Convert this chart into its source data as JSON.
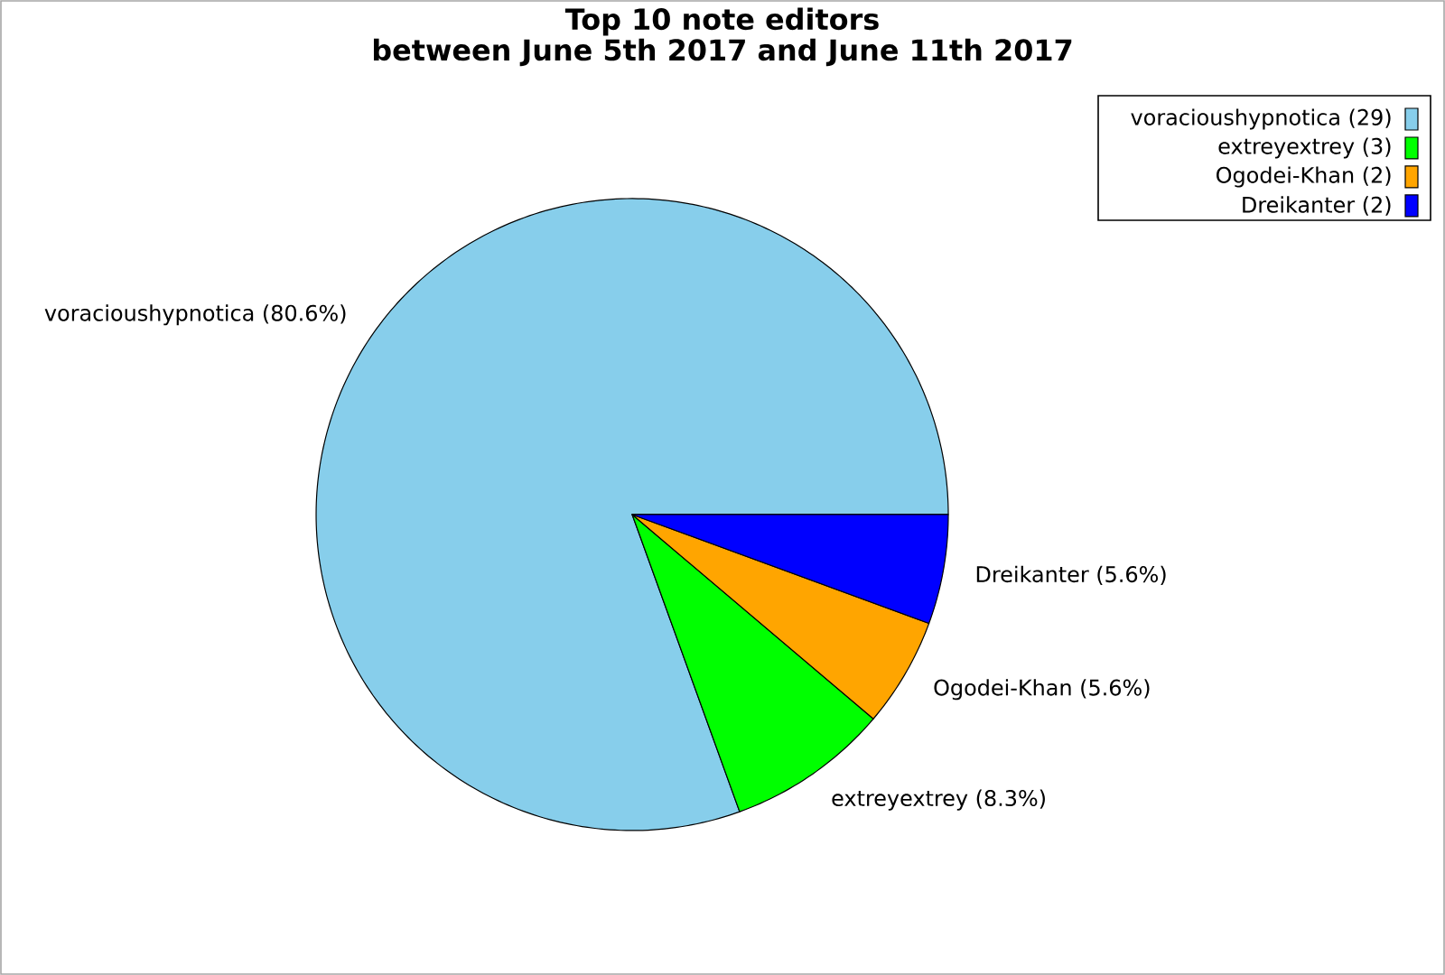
{
  "chart_data": {
    "type": "pie",
    "title": "Top 10 note editors",
    "subtitle": "between June 5th 2017 and June 11th 2017",
    "categories": [
      "voracioushypnotica (29)",
      "extreyextrey (3)",
      "Ogodei-Khan (2)",
      "Dreikanter (2)"
    ],
    "values": [
      80.6,
      8.3,
      5.6,
      5.6
    ],
    "value_labels": [
      "voracioushypnotica (80.6%)",
      "extreyextrey (8.3%)",
      "Ogodei-Khan (5.6%)",
      "Dreikanter (5.6%)"
    ],
    "colors": [
      "#87ceeb",
      "#00ff00",
      "#ffa500",
      "#0000ff"
    ],
    "legend": "top right"
  }
}
